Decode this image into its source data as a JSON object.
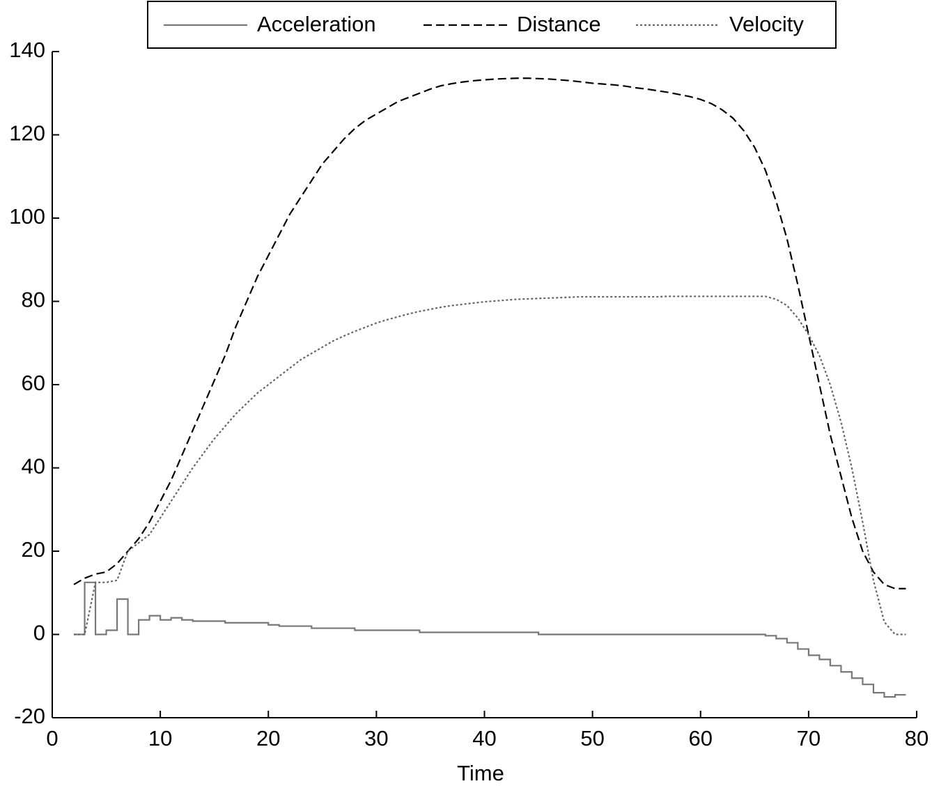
{
  "chart_data": {
    "type": "line",
    "x_label": "Time",
    "x": [
      2,
      3,
      4,
      5,
      6,
      7,
      8,
      9,
      10,
      11,
      12,
      13,
      14,
      15,
      16,
      17,
      18,
      19,
      20,
      21,
      22,
      23,
      24,
      25,
      26,
      27,
      28,
      29,
      30,
      31,
      32,
      33,
      34,
      35,
      36,
      37,
      38,
      39,
      40,
      41,
      42,
      43,
      44,
      45,
      46,
      47,
      48,
      49,
      50,
      51,
      52,
      53,
      54,
      55,
      56,
      57,
      58,
      59,
      60,
      61,
      62,
      63,
      64,
      65,
      66,
      67,
      68,
      69,
      70,
      71,
      72,
      73,
      74,
      75,
      76,
      77,
      78,
      79
    ],
    "series": [
      {
        "name": "Acceleration",
        "color": "#777777",
        "dash": "none",
        "step": true,
        "values": [
          0,
          12.5,
          0,
          1,
          8.5,
          0,
          3.5,
          4.5,
          3.5,
          4,
          3.5,
          3.2,
          3.2,
          3.2,
          2.8,
          2.8,
          2.8,
          2.8,
          2.3,
          2,
          2,
          2,
          1.5,
          1.5,
          1.5,
          1.5,
          1,
          1,
          1,
          1,
          1,
          1,
          0.5,
          0.5,
          0.5,
          0.5,
          0.5,
          0.5,
          0.5,
          0.5,
          0.5,
          0.5,
          0.5,
          0,
          0,
          0,
          0,
          0,
          0,
          0,
          0,
          0,
          0,
          0,
          0,
          0,
          0,
          0,
          0,
          0,
          0,
          0,
          0,
          0,
          -0.3,
          -1,
          -2,
          -3.5,
          -5,
          -6,
          -7.5,
          -9,
          -10.5,
          -12,
          -14,
          -15,
          -14.5,
          -14.5
        ]
      },
      {
        "name": "Distance",
        "color": "#000000",
        "dash": "12,6",
        "step": false,
        "values": [
          12,
          13.5,
          14.5,
          15,
          17,
          20,
          23,
          27,
          32,
          37,
          43,
          49,
          55,
          61,
          67,
          74,
          80,
          86,
          91,
          96,
          101,
          105,
          109,
          113,
          116,
          119,
          121.5,
          123.5,
          125,
          126.5,
          128,
          129,
          130,
          131,
          131.8,
          132.3,
          132.7,
          133,
          133.2,
          133.4,
          133.5,
          133.6,
          133.6,
          133.5,
          133.4,
          133.2,
          133,
          132.7,
          132.4,
          132.2,
          132,
          131.7,
          131.3,
          131,
          130.6,
          130.2,
          129.7,
          129.2,
          128.5,
          127.5,
          126,
          124,
          121,
          117,
          111.5,
          104,
          95,
          84,
          72,
          60,
          48,
          38,
          28,
          20,
          15,
          12,
          11,
          11
        ]
      },
      {
        "name": "Velocity",
        "color": "#666666",
        "dash": "3,3",
        "step": false,
        "values": [
          0,
          0,
          12.5,
          12.5,
          13,
          20,
          22,
          24,
          28,
          32,
          36,
          40,
          43.5,
          47,
          50,
          53,
          55.5,
          58,
          60,
          62,
          64,
          66,
          67.5,
          69,
          70.5,
          71.7,
          72.8,
          73.8,
          74.8,
          75.6,
          76.3,
          77,
          77.6,
          78.1,
          78.6,
          79,
          79.3,
          79.6,
          79.9,
          80.1,
          80.3,
          80.5,
          80.6,
          80.7,
          80.8,
          80.9,
          81,
          81.1,
          81.1,
          81.1,
          81.1,
          81.1,
          81.1,
          81.1,
          81.1,
          81.2,
          81.2,
          81.2,
          81.2,
          81.2,
          81.2,
          81.2,
          81.2,
          81.2,
          81.2,
          80.5,
          79,
          76,
          72,
          67,
          60,
          51,
          40,
          27,
          13,
          3,
          0,
          0
        ]
      }
    ],
    "xlim": [
      0,
      80
    ],
    "xticks": [
      0,
      10,
      20,
      30,
      40,
      50,
      60,
      70,
      80
    ],
    "ylim": [
      -20,
      140
    ],
    "yticks": [
      -20,
      0,
      20,
      40,
      60,
      80,
      100,
      120,
      140
    ],
    "legend": "top"
  }
}
